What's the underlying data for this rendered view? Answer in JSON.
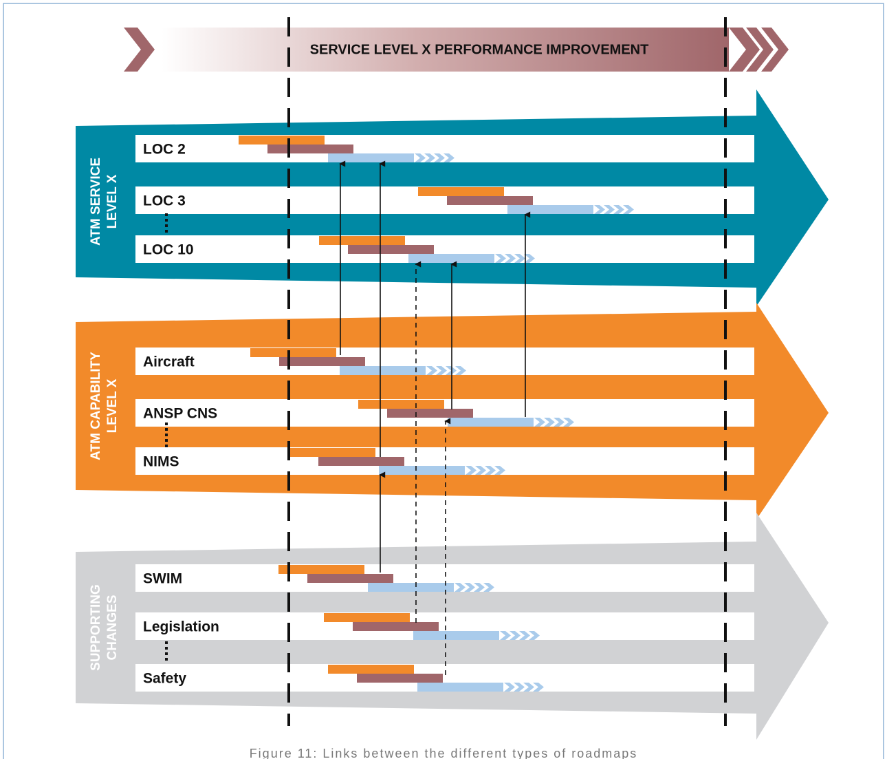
{
  "banner": {
    "title": "SERVICE LEVEL X PERFORMANCE IMPROVEMENT"
  },
  "groups": [
    {
      "label": [
        "ATM SERVICE",
        "LEVEL X"
      ],
      "rows": [
        "LOC 2",
        "LOC 3",
        "LOC 10"
      ]
    },
    {
      "label": [
        "ATM CAPABILITY",
        "LEVEL X"
      ],
      "rows": [
        "Aircraft",
        "ANSP CNS",
        "NIMS"
      ]
    },
    {
      "label": [
        "SUPPORTING",
        "CHANGES"
      ],
      "rows": [
        "SWIM",
        "Legislation",
        "Safety"
      ]
    }
  ],
  "caption": "Figure 11: Links between the different types of roadmaps"
}
